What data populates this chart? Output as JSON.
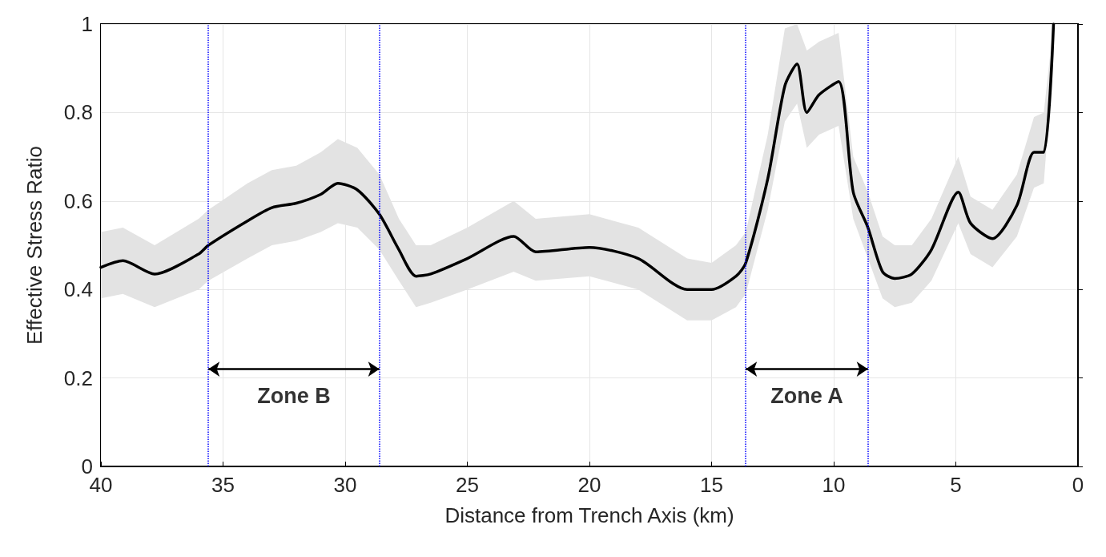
{
  "chart_data": {
    "type": "line",
    "xlabel": "Distance from Trench Axis (km)",
    "ylabel": "Effective Stress Ratio",
    "xlim": [
      40,
      0
    ],
    "xticks": [
      40,
      35,
      30,
      25,
      20,
      15,
      10,
      5,
      0
    ],
    "ylim": [
      0,
      1
    ],
    "yticks": [
      0,
      0.2,
      0.4,
      0.6,
      0.8,
      1
    ],
    "grid": true,
    "marker": "none",
    "line_style": "solid",
    "series": [
      {
        "color": "#000000",
        "x": [
          40,
          39.1,
          37.8,
          36,
          35.6,
          34,
          33,
          32,
          31,
          30.3,
          29.5,
          28.6,
          27.8,
          27.1,
          26.5,
          25,
          23.1,
          22.2,
          20,
          18,
          16,
          15,
          14,
          13.6,
          12.7,
          12,
          11.5,
          11.1,
          10.6,
          9.8,
          9.2,
          8.6,
          8,
          7.5,
          6.8,
          6,
          4.9,
          4.4,
          3.5,
          2.5,
          1.8,
          1.4,
          1.0
        ],
        "values": [
          0.45,
          0.465,
          0.435,
          0.48,
          0.5,
          0.555,
          0.585,
          0.595,
          0.615,
          0.64,
          0.625,
          0.57,
          0.49,
          0.43,
          0.435,
          0.47,
          0.52,
          0.485,
          0.495,
          0.47,
          0.4,
          0.4,
          0.43,
          0.46,
          0.65,
          0.86,
          0.91,
          0.8,
          0.84,
          0.87,
          0.62,
          0.54,
          0.44,
          0.425,
          0.435,
          0.49,
          0.62,
          0.55,
          0.515,
          0.59,
          0.71,
          0.71,
          1.0
        ],
        "lower": [
          0.38,
          0.39,
          0.36,
          0.4,
          0.42,
          0.47,
          0.5,
          0.51,
          0.53,
          0.55,
          0.54,
          0.49,
          0.42,
          0.36,
          0.37,
          0.4,
          0.44,
          0.42,
          0.43,
          0.4,
          0.33,
          0.33,
          0.36,
          0.39,
          0.58,
          0.78,
          0.82,
          0.72,
          0.75,
          0.77,
          0.56,
          0.47,
          0.38,
          0.36,
          0.37,
          0.42,
          0.55,
          0.48,
          0.45,
          0.52,
          0.63,
          0.64,
          0.93
        ],
        "upper": [
          0.53,
          0.54,
          0.5,
          0.56,
          0.58,
          0.64,
          0.67,
          0.68,
          0.71,
          0.74,
          0.72,
          0.66,
          0.56,
          0.5,
          0.5,
          0.54,
          0.6,
          0.56,
          0.57,
          0.54,
          0.47,
          0.46,
          0.5,
          0.53,
          0.75,
          0.99,
          1.0,
          0.94,
          0.96,
          0.98,
          0.7,
          0.62,
          0.52,
          0.5,
          0.5,
          0.56,
          0.7,
          0.61,
          0.58,
          0.66,
          0.79,
          0.8,
          1.0
        ]
      }
    ],
    "ref_lines": [
      {
        "axis": "x",
        "value": 35.6,
        "color": "#0000ff",
        "line_style": "dotted"
      },
      {
        "axis": "x",
        "value": 28.6,
        "color": "#0000ff",
        "line_style": "dotted"
      },
      {
        "axis": "x",
        "value": 13.6,
        "color": "#0000ff",
        "line_style": "dotted"
      },
      {
        "axis": "x",
        "value": 8.6,
        "color": "#0000ff",
        "line_style": "dotted"
      }
    ],
    "annotations": [
      "Zone B",
      "Zone A"
    ]
  }
}
